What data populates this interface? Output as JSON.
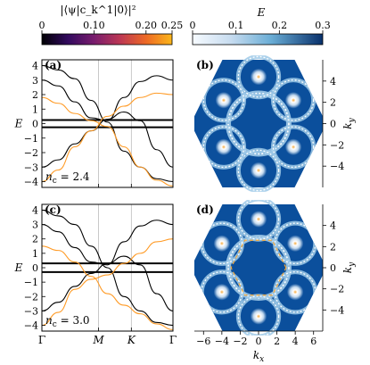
{
  "colorbars": [
    {
      "label": "|⟨ψ|c_k^1|0⟩|²",
      "ticks": [
        0,
        0.1,
        0.2,
        0.25
      ],
      "tick_labels": [
        "0",
        "0.10",
        "0.20",
        "0.25"
      ],
      "colormap": "inferno"
    },
    {
      "label": "E",
      "ticks": [
        0,
        0.1,
        0.2,
        0.3
      ],
      "tick_labels": [
        "0",
        "0.1",
        "0.2",
        "0.3"
      ],
      "colormap": "blues-reversed"
    }
  ],
  "chart_data": [
    {
      "panel": "(a)",
      "type": "line",
      "ylabel": "E",
      "ylim": [
        -4.4,
        4.4
      ],
      "yticks": [
        -4,
        -3,
        -2,
        -1,
        0,
        1,
        2,
        3,
        4
      ],
      "xticks": [
        "Γ",
        "M",
        "K",
        "Γ"
      ],
      "annotation": "n_c = 2.4",
      "flat_bands": [
        0.25,
        -0.25
      ],
      "series": [
        {
          "color": "#000000",
          "x": [
            0,
            0.5,
            1,
            1.5,
            2,
            2.5,
            3,
            3.5,
            4
          ],
          "y": [
            4.0,
            3.7,
            3.1,
            1.6,
            0.1,
            -1.9,
            -3.0,
            -3.8,
            -4.0
          ]
        },
        {
          "color": "#000000",
          "x": [
            0,
            0.5,
            1,
            1.5,
            2,
            2.5,
            3,
            3.5,
            4
          ],
          "y": [
            3.0,
            2.6,
            1.5,
            0.4,
            0.2,
            1.8,
            2.9,
            3.3,
            3.0
          ]
        },
        {
          "color": "#000000",
          "x": [
            0,
            0.5,
            1,
            1.5,
            2,
            2.5,
            3,
            3.5,
            4
          ],
          "y": [
            -3.0,
            -2.5,
            -1.4,
            -0.5,
            0.3,
            0.8,
            0.2,
            -1.8,
            -3.0
          ]
        },
        {
          "color": "#FF9B26",
          "x": [
            0,
            0.5,
            1,
            1.5,
            2,
            2.5,
            3,
            3.5,
            4
          ],
          "y": [
            1.8,
            1.4,
            0.7,
            0.2,
            -0.2,
            -1.6,
            -3.0,
            -3.9,
            -4.3
          ]
        },
        {
          "color": "#FF9B26",
          "x": [
            0,
            0.5,
            1,
            1.5,
            2,
            2.5,
            3,
            3.5,
            4
          ],
          "y": [
            -4.0,
            -3.2,
            -1.6,
            -0.5,
            0.5,
            1.2,
            1.8,
            2.1,
            2.0
          ]
        }
      ]
    },
    {
      "panel": "(b)",
      "type": "heatmap",
      "ylabel": "k_y",
      "ylim": [
        -6,
        6
      ],
      "yticks": [
        -4,
        -2,
        0,
        2,
        4
      ],
      "ring_radius": 3.3,
      "pockets": [
        [
          0,
          4.4
        ],
        [
          3.8,
          2.2
        ],
        [
          3.8,
          -2.2
        ],
        [
          0,
          -4.4
        ],
        [
          -3.8,
          -2.2
        ],
        [
          -3.8,
          2.2
        ]
      ]
    },
    {
      "panel": "(c)",
      "type": "line",
      "ylabel": "E",
      "ylim": [
        -4.4,
        4.4
      ],
      "yticks": [
        -4,
        -3,
        -2,
        -1,
        0,
        1,
        2,
        3,
        4
      ],
      "xticks": [
        "Γ",
        "M",
        "K",
        "Γ"
      ],
      "annotation": "n_c = 3.0",
      "flat_bands": [
        0.3,
        -0.3
      ],
      "series": [
        {
          "color": "#000000",
          "x": [
            0,
            0.5,
            1,
            1.5,
            2,
            2.5,
            3,
            3.5,
            4
          ],
          "y": [
            4.0,
            3.6,
            3.0,
            1.5,
            0.0,
            -2.0,
            -3.0,
            -3.8,
            -4.0
          ]
        },
        {
          "color": "#000000",
          "x": [
            0,
            0.5,
            1,
            1.5,
            2,
            2.5,
            3,
            3.5,
            4
          ],
          "y": [
            3.0,
            2.5,
            1.4,
            0.4,
            0.2,
            1.8,
            2.9,
            3.3,
            3.0
          ]
        },
        {
          "color": "#000000",
          "x": [
            0,
            0.5,
            1,
            1.5,
            2,
            2.5,
            3,
            3.5,
            4
          ],
          "y": [
            -3.0,
            -2.4,
            -1.3,
            -0.4,
            0.3,
            0.8,
            0.2,
            -1.8,
            -3.0
          ]
        },
        {
          "color": "#FF9B26",
          "x": [
            0,
            0.5,
            1,
            1.5,
            2,
            2.5,
            3,
            3.5,
            4
          ],
          "y": [
            1.5,
            1.2,
            0.4,
            -0.6,
            -1.8,
            -2.6,
            -3.2,
            -3.9,
            -4.3
          ]
        },
        {
          "color": "#FF9B26",
          "x": [
            0,
            0.5,
            1,
            1.5,
            2,
            2.5,
            3,
            3.5,
            4
          ],
          "y": [
            -4.0,
            -3.1,
            -1.5,
            -0.8,
            -0.5,
            0.3,
            1.0,
            1.8,
            2.0
          ]
        }
      ]
    },
    {
      "panel": "(d)",
      "type": "heatmap",
      "xlabel": "k_x",
      "ylabel": "k_y",
      "xlim": [
        -7,
        7
      ],
      "ylim": [
        -6,
        6
      ],
      "xticks": [
        -6,
        -4,
        -2,
        0,
        2,
        4,
        6
      ],
      "yticks": [
        -4,
        -2,
        0,
        2,
        4
      ],
      "ring_radius": 3.3,
      "dashed_hexagon_radius": 3.0,
      "pockets": [
        [
          0,
          4.6
        ],
        [
          4.0,
          2.3
        ],
        [
          4.0,
          -2.3
        ],
        [
          0,
          -4.6
        ],
        [
          -4.0,
          -2.3
        ],
        [
          -4.0,
          2.3
        ]
      ]
    }
  ]
}
